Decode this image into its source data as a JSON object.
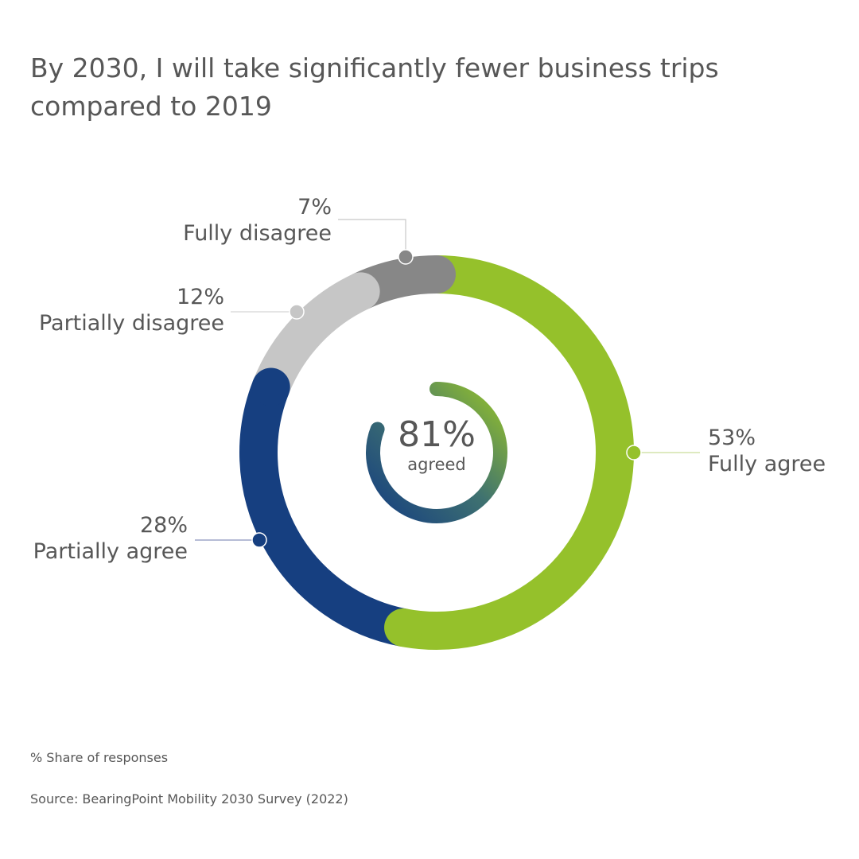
{
  "title": "By 2030, I will take significantly fewer business trips compared to 2019",
  "chart_data": {
    "type": "pie",
    "style": "donut",
    "title": "By 2030, I will take significantly fewer business trips compared to 2019",
    "series": [
      {
        "name": "Fully agree",
        "value": 53,
        "label": "53%",
        "color": "#95C12B"
      },
      {
        "name": "Partially agree",
        "value": 28,
        "label": "28%",
        "color": "#163F80"
      },
      {
        "name": "Partially disagree",
        "value": 12,
        "label": "12%",
        "color": "#C6C6C6"
      },
      {
        "name": "Fully disagree",
        "value": 7,
        "label": "7%",
        "color": "#878787"
      }
    ],
    "center": {
      "value": 81,
      "value_label": "81%",
      "caption": "agreed",
      "gradient": [
        "#95C12B",
        "#163F80"
      ]
    }
  },
  "footer": {
    "note": "% Share of responses",
    "source": "Source: BearingPoint Mobility 2030 Survey (2022)"
  }
}
